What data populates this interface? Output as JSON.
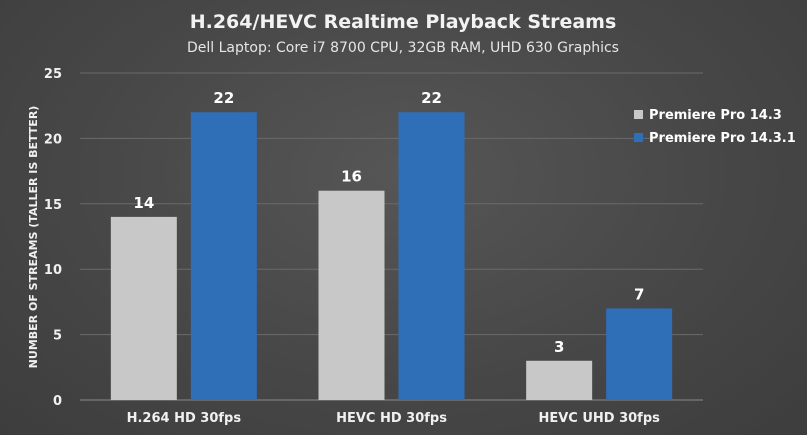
{
  "chart_data": {
    "type": "bar",
    "title": "H.264/HEVC Realtime Playback Streams",
    "subtitle": "Dell Laptop: Core i7 8700 CPU, 32GB RAM, UHD 630 Graphics",
    "ylabel": "NUMBER OF STREAMS (TALLER IS BETTER)",
    "xlabel": "",
    "categories": [
      "H.264 HD 30fps",
      "HEVC HD 30fps",
      "HEVC UHD 30fps"
    ],
    "series": [
      {
        "name": "Premiere Pro 14.3",
        "color": "#c8c8c8",
        "values": [
          14,
          16,
          3
        ]
      },
      {
        "name": "Premiere Pro 14.3.1",
        "color": "#2f6fb8",
        "values": [
          22,
          22,
          7
        ]
      }
    ],
    "ylim": [
      0,
      25
    ],
    "yticks": [
      0,
      5,
      10,
      15,
      20,
      25
    ],
    "grid": true,
    "legend_position": "right",
    "data_labels": true
  }
}
